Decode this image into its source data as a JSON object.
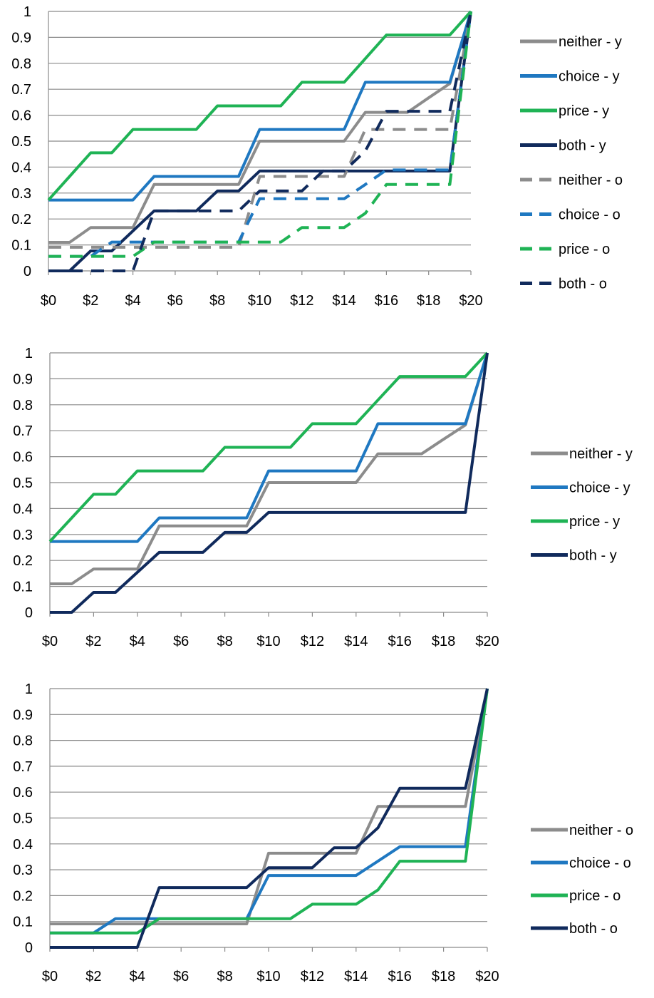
{
  "chart_data": [
    {
      "type": "line",
      "title": "",
      "xlabel": "",
      "ylabel": "",
      "x": [
        0,
        1,
        2,
        3,
        4,
        5,
        6,
        7,
        8,
        9,
        10,
        11,
        12,
        13,
        14,
        15,
        16,
        17,
        18,
        19,
        20
      ],
      "x_ticks": [
        "$0",
        "$2",
        "$4",
        "$6",
        "$8",
        "$10",
        "$12",
        "$14",
        "$16",
        "$18",
        "$20"
      ],
      "y_ticks": [
        "0",
        "0.1",
        "0.2",
        "0.3",
        "0.4",
        "0.5",
        "0.6",
        "0.7",
        "0.8",
        "0.9",
        "1"
      ],
      "ylim": [
        0,
        1
      ],
      "grid": true,
      "legend_position": "right",
      "series": [
        {
          "name": "neither - y",
          "color": "#8c8c8c",
          "dash": false,
          "values": [
            0.11,
            0.11,
            0.167,
            0.167,
            0.167,
            0.333,
            0.333,
            0.333,
            0.333,
            0.333,
            0.5,
            0.5,
            0.5,
            0.5,
            0.5,
            0.611,
            0.611,
            0.611,
            0.667,
            0.722,
            1
          ]
        },
        {
          "name": "choice - y",
          "color": "#1f78c1",
          "dash": false,
          "values": [
            0.273,
            0.273,
            0.273,
            0.273,
            0.273,
            0.364,
            0.364,
            0.364,
            0.364,
            0.364,
            0.545,
            0.545,
            0.545,
            0.545,
            0.545,
            0.727,
            0.727,
            0.727,
            0.727,
            0.727,
            1
          ]
        },
        {
          "name": "price - y",
          "color": "#1fb355",
          "dash": false,
          "values": [
            0.273,
            0.364,
            0.455,
            0.455,
            0.545,
            0.545,
            0.545,
            0.545,
            0.636,
            0.636,
            0.636,
            0.636,
            0.727,
            0.727,
            0.727,
            0.818,
            0.909,
            0.909,
            0.909,
            0.909,
            1
          ]
        },
        {
          "name": "both - y",
          "color": "#102a5c",
          "dash": false,
          "values": [
            0,
            0,
            0.077,
            0.077,
            0.154,
            0.231,
            0.231,
            0.231,
            0.308,
            0.308,
            0.385,
            0.385,
            0.385,
            0.385,
            0.385,
            0.385,
            0.385,
            0.385,
            0.385,
            0.385,
            1
          ]
        },
        {
          "name": "neither - o",
          "color": "#8c8c8c",
          "dash": true,
          "values": [
            0.091,
            0.091,
            0.091,
            0.091,
            0.091,
            0.091,
            0.091,
            0.091,
            0.091,
            0.091,
            0.364,
            0.364,
            0.364,
            0.364,
            0.364,
            0.545,
            0.545,
            0.545,
            0.545,
            0.545,
            1
          ]
        },
        {
          "name": "choice - o",
          "color": "#1f78c1",
          "dash": true,
          "values": [
            0.056,
            0.056,
            0.056,
            0.111,
            0.111,
            0.111,
            0.111,
            0.111,
            0.111,
            0.111,
            0.278,
            0.278,
            0.278,
            0.278,
            0.278,
            0.333,
            0.389,
            0.389,
            0.389,
            0.389,
            1
          ]
        },
        {
          "name": "price - o",
          "color": "#1fb355",
          "dash": true,
          "values": [
            0.056,
            0.056,
            0.056,
            0.056,
            0.056,
            0.111,
            0.111,
            0.111,
            0.111,
            0.111,
            0.111,
            0.111,
            0.167,
            0.167,
            0.167,
            0.222,
            0.333,
            0.333,
            0.333,
            0.333,
            1
          ]
        },
        {
          "name": "both - o",
          "color": "#102a5c",
          "dash": true,
          "values": [
            0,
            0,
            0,
            0,
            0,
            0.231,
            0.231,
            0.231,
            0.231,
            0.231,
            0.308,
            0.308,
            0.308,
            0.385,
            0.385,
            0.462,
            0.615,
            0.615,
            0.615,
            0.615,
            1
          ]
        }
      ]
    },
    {
      "type": "line",
      "title": "",
      "xlabel": "",
      "ylabel": "",
      "x": [
        0,
        1,
        2,
        3,
        4,
        5,
        6,
        7,
        8,
        9,
        10,
        11,
        12,
        13,
        14,
        15,
        16,
        17,
        18,
        19,
        20
      ],
      "x_ticks": [
        "$0",
        "$2",
        "$4",
        "$6",
        "$8",
        "$10",
        "$12",
        "$14",
        "$16",
        "$18",
        "$20"
      ],
      "y_ticks": [
        "0",
        "0.1",
        "0.2",
        "0.3",
        "0.4",
        "0.5",
        "0.6",
        "0.7",
        "0.8",
        "0.9",
        "1"
      ],
      "ylim": [
        0,
        1
      ],
      "grid": true,
      "legend_position": "right",
      "series": [
        {
          "name": "neither - y",
          "color": "#8c8c8c",
          "dash": false,
          "values": [
            0.11,
            0.11,
            0.167,
            0.167,
            0.167,
            0.333,
            0.333,
            0.333,
            0.333,
            0.333,
            0.5,
            0.5,
            0.5,
            0.5,
            0.5,
            0.611,
            0.611,
            0.611,
            0.667,
            0.722,
            1
          ]
        },
        {
          "name": "choice - y",
          "color": "#1f78c1",
          "dash": false,
          "values": [
            0.273,
            0.273,
            0.273,
            0.273,
            0.273,
            0.364,
            0.364,
            0.364,
            0.364,
            0.364,
            0.545,
            0.545,
            0.545,
            0.545,
            0.545,
            0.727,
            0.727,
            0.727,
            0.727,
            0.727,
            1
          ]
        },
        {
          "name": "price - y",
          "color": "#1fb355",
          "dash": false,
          "values": [
            0.273,
            0.364,
            0.455,
            0.455,
            0.545,
            0.545,
            0.545,
            0.545,
            0.636,
            0.636,
            0.636,
            0.636,
            0.727,
            0.727,
            0.727,
            0.818,
            0.909,
            0.909,
            0.909,
            0.909,
            1
          ]
        },
        {
          "name": "both - y",
          "color": "#102a5c",
          "dash": false,
          "values": [
            0,
            0,
            0.077,
            0.077,
            0.154,
            0.231,
            0.231,
            0.231,
            0.308,
            0.308,
            0.385,
            0.385,
            0.385,
            0.385,
            0.385,
            0.385,
            0.385,
            0.385,
            0.385,
            0.385,
            1
          ]
        }
      ]
    },
    {
      "type": "line",
      "title": "",
      "xlabel": "",
      "ylabel": "",
      "x": [
        0,
        1,
        2,
        3,
        4,
        5,
        6,
        7,
        8,
        9,
        10,
        11,
        12,
        13,
        14,
        15,
        16,
        17,
        18,
        19,
        20
      ],
      "x_ticks": [
        "$0",
        "$2",
        "$4",
        "$6",
        "$8",
        "$10",
        "$12",
        "$14",
        "$16",
        "$18",
        "$20"
      ],
      "y_ticks": [
        "0",
        "0.1",
        "0.2",
        "0.3",
        "0.4",
        "0.5",
        "0.6",
        "0.7",
        "0.8",
        "0.9",
        "1"
      ],
      "ylim": [
        0,
        1
      ],
      "grid": true,
      "legend_position": "right",
      "series": [
        {
          "name": "neither - o",
          "color": "#8c8c8c",
          "dash": false,
          "values": [
            0.091,
            0.091,
            0.091,
            0.091,
            0.091,
            0.091,
            0.091,
            0.091,
            0.091,
            0.091,
            0.364,
            0.364,
            0.364,
            0.364,
            0.364,
            0.545,
            0.545,
            0.545,
            0.545,
            0.545,
            1
          ]
        },
        {
          "name": "choice - o",
          "color": "#1f78c1",
          "dash": false,
          "values": [
            0.056,
            0.056,
            0.056,
            0.111,
            0.111,
            0.111,
            0.111,
            0.111,
            0.111,
            0.111,
            0.278,
            0.278,
            0.278,
            0.278,
            0.278,
            0.333,
            0.389,
            0.389,
            0.389,
            0.389,
            1
          ]
        },
        {
          "name": "price - o",
          "color": "#1fb355",
          "dash": false,
          "values": [
            0.056,
            0.056,
            0.056,
            0.056,
            0.056,
            0.111,
            0.111,
            0.111,
            0.111,
            0.111,
            0.111,
            0.111,
            0.167,
            0.167,
            0.167,
            0.222,
            0.333,
            0.333,
            0.333,
            0.333,
            1
          ]
        },
        {
          "name": "both - o",
          "color": "#102a5c",
          "dash": false,
          "values": [
            0,
            0,
            0,
            0,
            0,
            0.231,
            0.231,
            0.231,
            0.231,
            0.231,
            0.308,
            0.308,
            0.308,
            0.385,
            0.385,
            0.462,
            0.615,
            0.615,
            0.615,
            0.615,
            1
          ]
        }
      ]
    }
  ]
}
